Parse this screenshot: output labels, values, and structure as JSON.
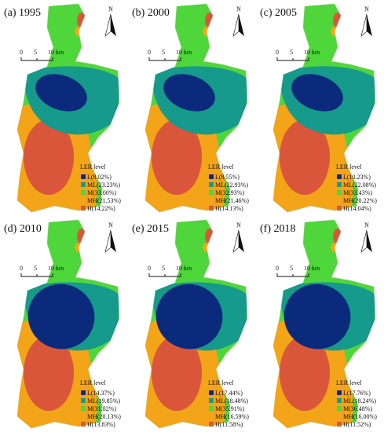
{
  "panels": [
    {
      "label": "(a) 1995",
      "north": "N",
      "scale": [
        "0",
        "5",
        "10 km"
      ],
      "legend_title": "LER level",
      "legend": [
        "L(8.02%)",
        "ML(23.23%)",
        "M(33.00%)",
        "MH(21.53%)",
        "H(14.22%)"
      ]
    },
    {
      "label": "(b) 2000",
      "north": "N",
      "scale": [
        "0",
        "5",
        "10 km"
      ],
      "legend_title": "LER level",
      "legend": [
        "L(8.55%)",
        "ML(22.93%)",
        "M(32.93%)",
        "MH(21.46%)",
        "H(14.13%)"
      ]
    },
    {
      "label": "(c) 2005",
      "north": "N",
      "scale": [
        "0",
        "5",
        "10 km"
      ],
      "legend_title": "LER level",
      "legend": [
        "L(10.23%)",
        "ML(22.08%)",
        "M(33.43%)",
        "MH(20.22%)",
        "H(14.04%)"
      ]
    },
    {
      "label": "(d) 2010",
      "north": "N",
      "scale": [
        "0",
        "5",
        "10 km"
      ],
      "legend_title": "LER level",
      "legend": [
        "L(14.37%)",
        "ML(19.85%)",
        "M(31.82%)",
        "MH(20.13%)",
        "H(13.83%)"
      ]
    },
    {
      "label": "(e) 2015",
      "north": "N",
      "scale": [
        "0",
        "5",
        "10 km"
      ],
      "legend_title": "LER level",
      "legend": [
        "L(17.44%)",
        "ML(18.48%)",
        "M(35.91%)",
        "MH(16.59%)",
        "H(11.58%)"
      ]
    },
    {
      "label": "(f) 2018",
      "north": "N",
      "scale": [
        "0",
        "5",
        "10 km"
      ],
      "legend_title": "LER level",
      "legend": [
        "L(17.76%)",
        "ML(18.24%)",
        "M(36.48%)",
        "MH(16.00%)",
        "H(11.52%)"
      ]
    }
  ]
}
